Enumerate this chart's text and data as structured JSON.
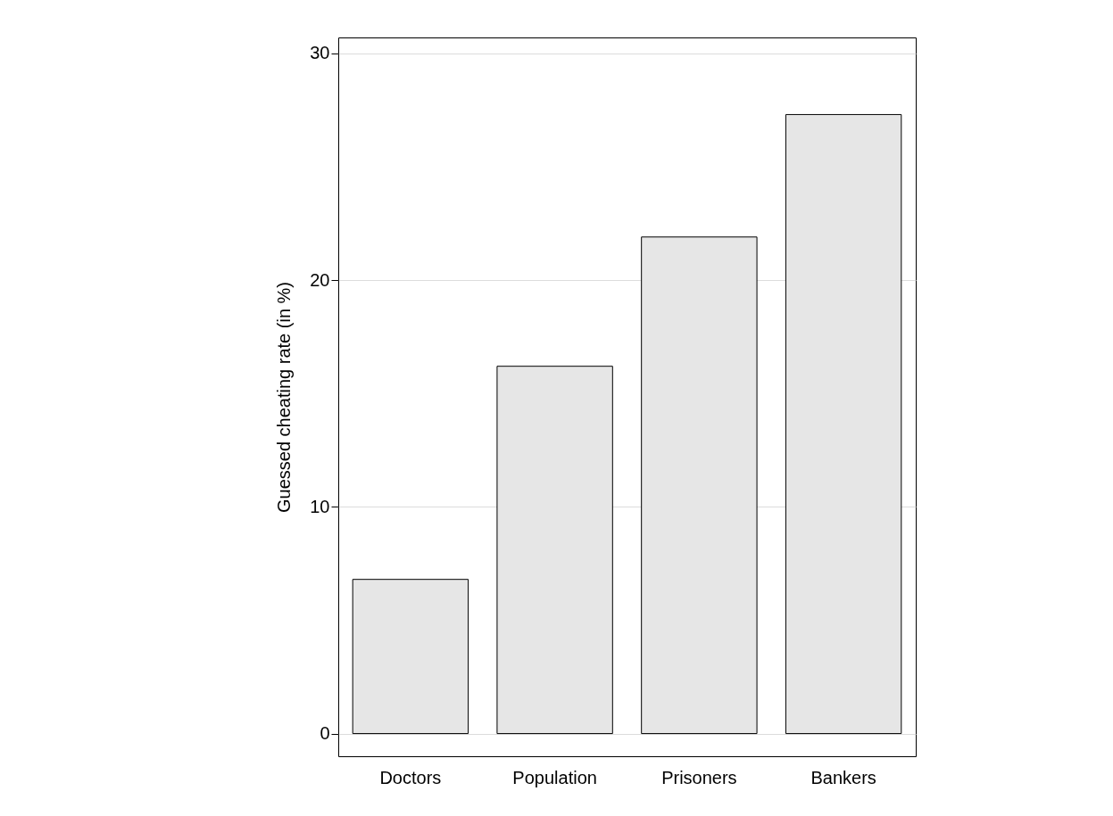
{
  "chart_data": {
    "type": "bar",
    "ylabel": "Guessed cheating rate (in %)",
    "categories": [
      "Doctors",
      "Population",
      "Prisoners",
      "Bankers"
    ],
    "values": [
      6.8,
      16.2,
      21.9,
      27.3
    ],
    "color": "#e6e6e6",
    "ylim": [
      -1,
      30.7
    ],
    "yticks": [
      0,
      10,
      20,
      30
    ],
    "grid": "y"
  }
}
